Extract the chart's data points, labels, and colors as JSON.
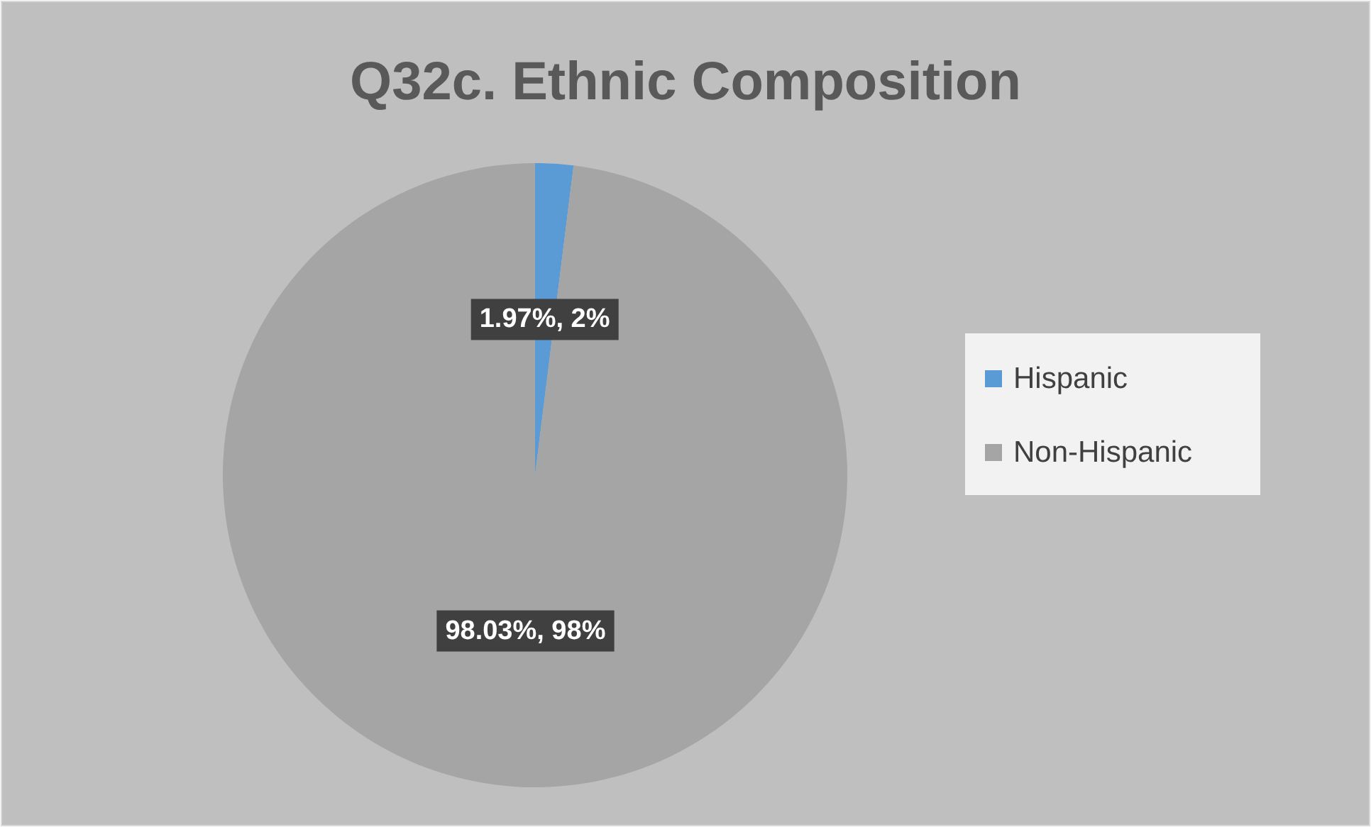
{
  "chart_data": {
    "type": "pie",
    "title": "Q32c. Ethnic Composition",
    "categories": [
      "Hispanic",
      "Non-Hispanic"
    ],
    "values": [
      1.97,
      98.03
    ],
    "colors": [
      "#5b9bd5",
      "#a5a5a5"
    ],
    "value_labels": [
      "1.97%, 2%",
      "98.03%, 98%"
    ],
    "legend": "right"
  }
}
